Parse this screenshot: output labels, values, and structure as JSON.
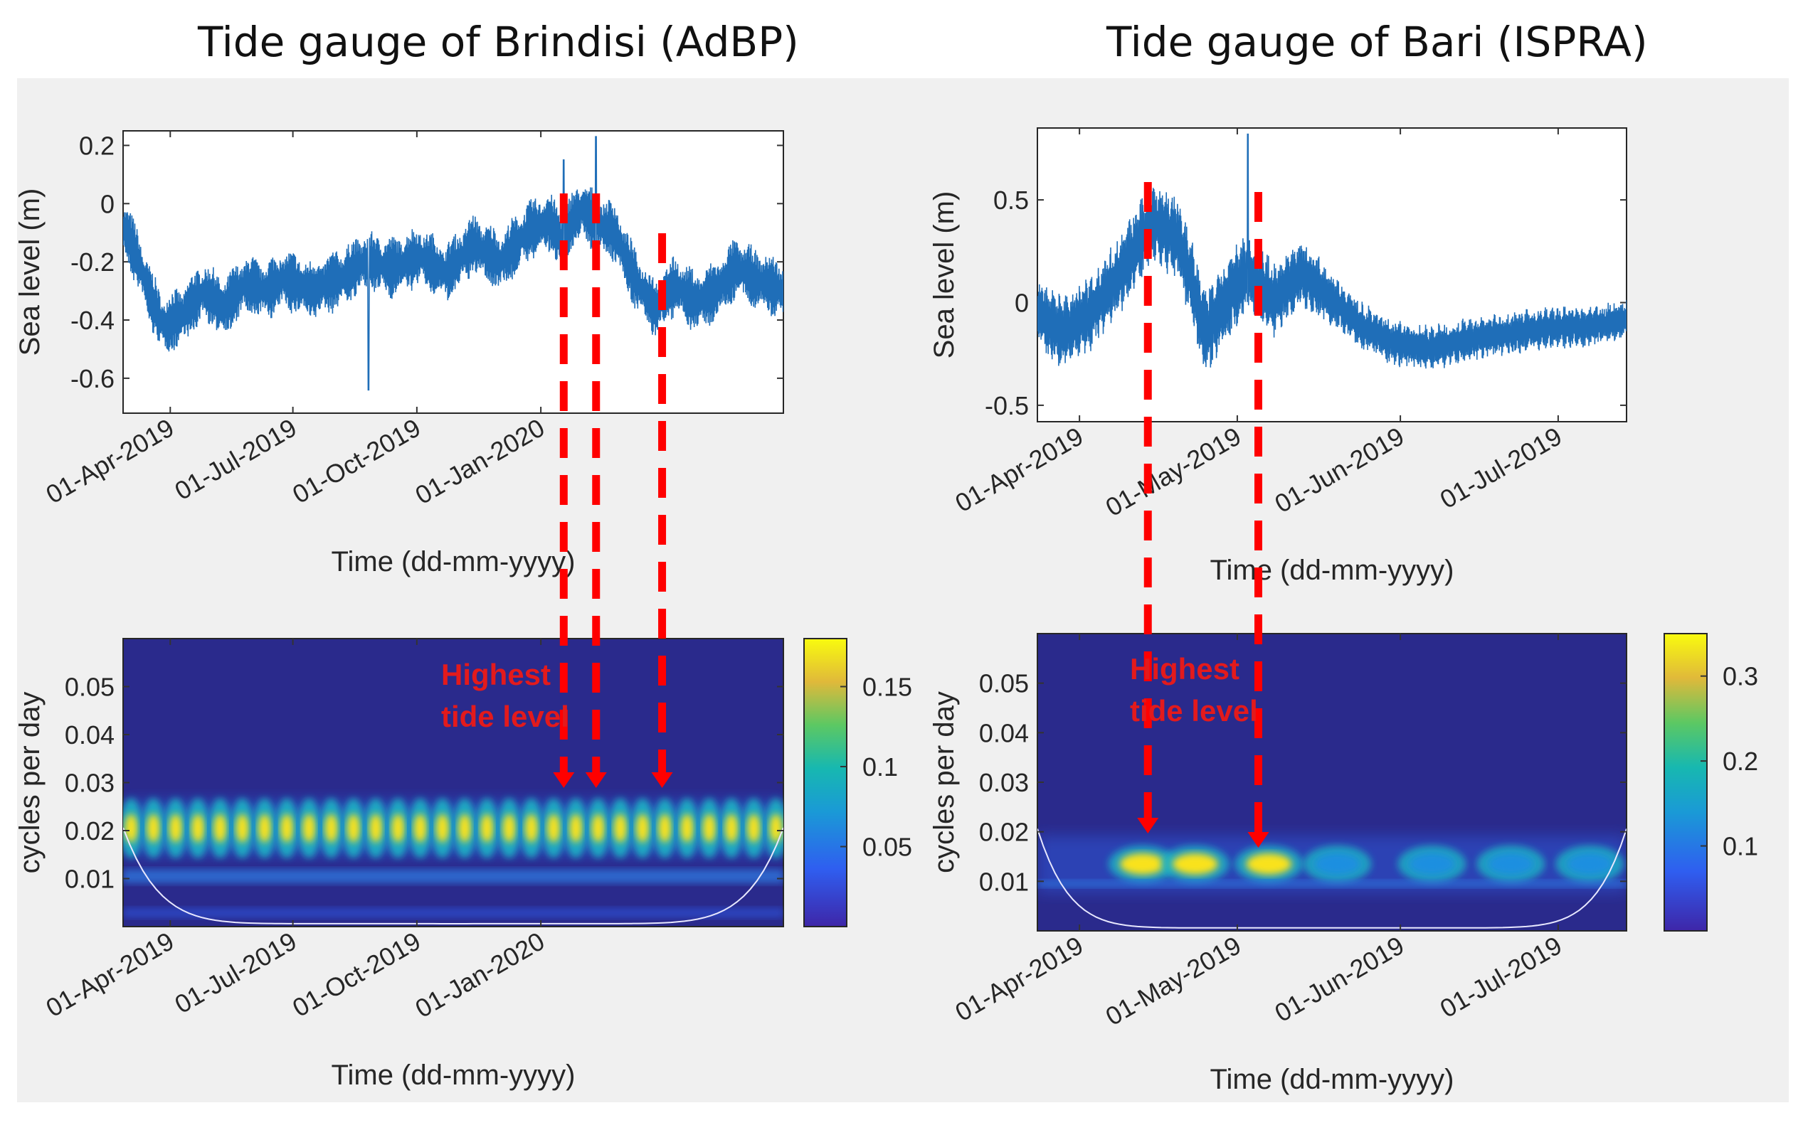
{
  "panels": {
    "left_title": "Tide gauge of Brindisi (AdBP)",
    "right_title": "Tide gauge of Bari (ISPRA)"
  },
  "annotation": {
    "line1": "Highest",
    "line2": "tide level"
  },
  "colors": {
    "series": "#1f6eb8",
    "arrow": "#ff0000",
    "annotation": "#e31a1c",
    "scalogram_bg": "#2a2a8c"
  },
  "chart_data": [
    {
      "id": "brindisi-sea-level",
      "type": "line",
      "title": "",
      "xlabel": "Time (dd-mm-yyyy)",
      "ylabel": "Sea level (m)",
      "x_range_days": [
        0,
        490
      ],
      "ylim": [
        -0.72,
        0.25
      ],
      "yticks": [
        0.2,
        0,
        -0.2,
        -0.4,
        -0.6
      ],
      "xticks": [
        {
          "day": 35,
          "label": "01-Apr-2019"
        },
        {
          "day": 126,
          "label": "01-Jul-2019"
        },
        {
          "day": 218,
          "label": "01-Oct-2019"
        },
        {
          "day": 310,
          "label": "01-Jan-2020"
        }
      ],
      "trend_days": [
        0,
        10,
        20,
        30,
        45,
        60,
        75,
        90,
        105,
        120,
        140,
        160,
        180,
        200,
        220,
        240,
        260,
        280,
        300,
        315,
        325,
        340,
        350,
        365,
        380,
        395,
        410,
        425,
        440,
        455,
        470,
        490
      ],
      "trend_values": [
        -0.08,
        -0.18,
        -0.32,
        -0.42,
        -0.38,
        -0.3,
        -0.36,
        -0.28,
        -0.3,
        -0.26,
        -0.3,
        -0.26,
        -0.2,
        -0.22,
        -0.18,
        -0.24,
        -0.14,
        -0.2,
        -0.1,
        -0.06,
        -0.12,
        -0.02,
        -0.06,
        -0.1,
        -0.26,
        -0.36,
        -0.28,
        -0.34,
        -0.3,
        -0.22,
        -0.26,
        -0.3
      ],
      "amplitude": 0.11,
      "tide_period_days": 14.8,
      "spikes": [
        {
          "day": 327,
          "value": 0.15
        },
        {
          "day": 351,
          "value": 0.23
        },
        {
          "day": 182,
          "value": -0.64
        }
      ]
    },
    {
      "id": "bari-sea-level",
      "type": "line",
      "title": "",
      "xlabel": "Time (dd-mm-yyyy)",
      "ylabel": "Sea level (m)",
      "x_range_days": [
        0,
        112
      ],
      "ylim": [
        -0.58,
        0.85
      ],
      "yticks": [
        0.5,
        0,
        -0.5
      ],
      "xticks": [
        {
          "day": 8,
          "label": "01-Apr-2019"
        },
        {
          "day": 38,
          "label": "01-May-2019"
        },
        {
          "day": 69,
          "label": "01-Jun-2019"
        },
        {
          "day": 99,
          "label": "01-Jul-2019"
        }
      ],
      "trend_days": [
        0,
        5,
        10,
        16,
        22,
        27,
        32,
        37,
        40,
        45,
        50,
        56,
        62,
        68,
        75,
        82,
        90,
        98,
        105,
        112
      ],
      "trend_values": [
        -0.05,
        -0.15,
        -0.05,
        0.15,
        0.4,
        0.3,
        -0.15,
        0.05,
        0.15,
        0.0,
        0.15,
        0.02,
        -0.12,
        -0.2,
        -0.22,
        -0.18,
        -0.15,
        -0.12,
        -0.12,
        -0.08
      ],
      "amplitude_profile": {
        "days": [
          0,
          30,
          45,
          60,
          112
        ],
        "values": [
          0.18,
          0.22,
          0.2,
          0.12,
          0.1
        ]
      },
      "tide_period_days": 1.2,
      "spikes": [
        {
          "day": 40,
          "value": 0.82
        }
      ]
    },
    {
      "id": "brindisi-scalogram",
      "type": "heatmap",
      "xlabel": "Time (dd-mm-yyyy)",
      "ylabel": "cycles per day",
      "x_range_days": [
        0,
        490
      ],
      "ylim": [
        0,
        0.06
      ],
      "yticks": [
        0.05,
        0.04,
        0.03,
        0.02,
        0.01
      ],
      "xticks": [
        {
          "day": 35,
          "label": "01-Apr-2019"
        },
        {
          "day": 126,
          "label": "01-Jul-2019"
        },
        {
          "day": 218,
          "label": "01-Oct-2019"
        },
        {
          "day": 310,
          "label": "01-Jan-2020"
        }
      ],
      "band_cpd": 0.0205,
      "blob_period_days": 16.5,
      "blob_peak": 0.17,
      "secondary_band_cpd": 0.0105,
      "colorbar": {
        "min": 0,
        "max": 0.18,
        "ticks": [
          0.15,
          0.1,
          0.05
        ]
      }
    },
    {
      "id": "bari-scalogram",
      "type": "heatmap",
      "xlabel": "Time (dd-mm-yyyy)",
      "ylabel": "cycles per day",
      "x_range_days": [
        0,
        112
      ],
      "ylim": [
        0,
        0.06
      ],
      "yticks": [
        0.05,
        0.04,
        0.03,
        0.02,
        0.01
      ],
      "xticks": [
        {
          "day": 8,
          "label": "01-Apr-2019"
        },
        {
          "day": 38,
          "label": "01-May-2019"
        },
        {
          "day": 69,
          "label": "01-Jun-2019"
        },
        {
          "day": 99,
          "label": "01-Jul-2019"
        }
      ],
      "band_cpd": 0.0135,
      "blob_days": [
        20,
        30,
        44,
        57,
        75,
        90,
        105
      ],
      "blob_values": [
        0.33,
        0.3,
        0.31,
        0.09,
        0.08,
        0.09,
        0.08
      ],
      "colorbar": {
        "min": 0,
        "max": 0.35,
        "ticks": [
          0.3,
          0.2,
          0.1
        ]
      }
    }
  ],
  "highest_tide_markers": {
    "brindisi_days": [
      327,
      351,
      400
    ],
    "bari_days": [
      21,
      42
    ]
  }
}
